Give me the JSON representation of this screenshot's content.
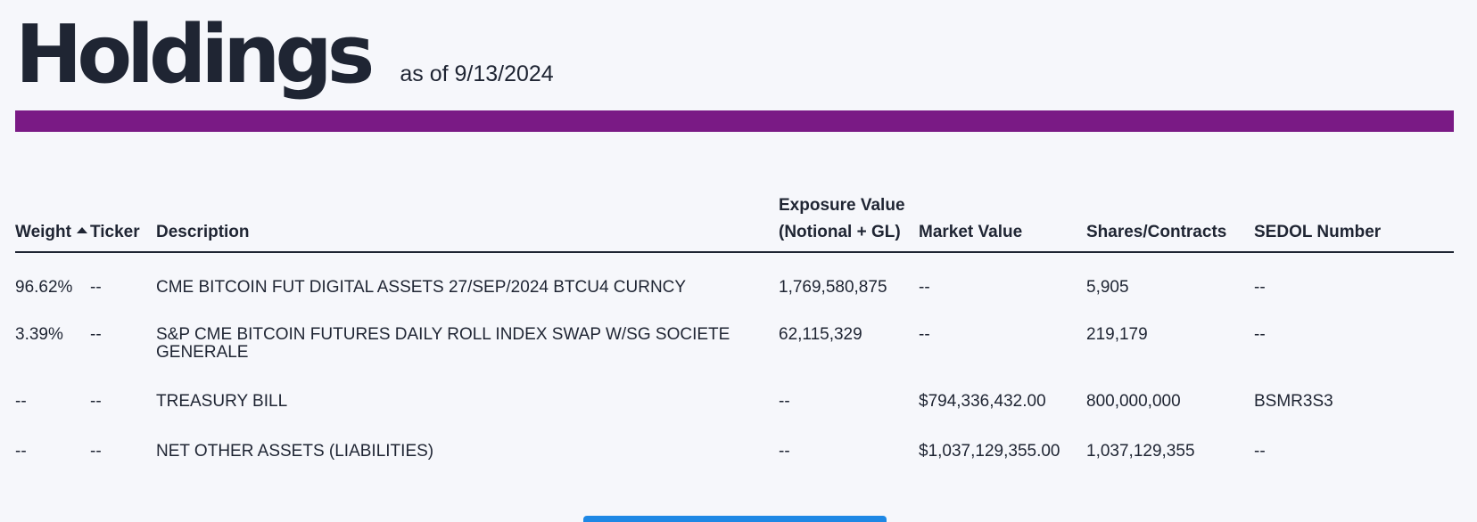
{
  "header": {
    "title": "Holdings",
    "as_of": "as of 9/13/2024",
    "accent_color": "#7a1a85"
  },
  "table": {
    "columns": {
      "weight": "Weight",
      "ticker": "Ticker",
      "description": "Description",
      "exposure_line1": "Exposure Value",
      "exposure_line2": "(Notional + GL)",
      "market_value": "Market Value",
      "shares": "Shares/Contracts",
      "sedol": "SEDOL Number"
    },
    "sort": {
      "column": "Weight",
      "direction": "ascending-icon"
    },
    "rows": [
      {
        "weight": "96.62%",
        "ticker": "--",
        "description": "CME BITCOIN FUT DIGITAL ASSETS 27/SEP/2024 BTCU4 CURNCY",
        "exposure": "1,769,580,875",
        "market_value": "--",
        "shares": "5,905",
        "sedol": "--"
      },
      {
        "weight": "3.39%",
        "ticker": "--",
        "description": "S&P CME BITCOIN FUTURES DAILY ROLL INDEX SWAP W/SG SOCIETE GENERALE",
        "exposure": "62,115,329",
        "market_value": "--",
        "shares": "219,179",
        "sedol": "--"
      },
      {
        "weight": "--",
        "ticker": "--",
        "description": "TREASURY BILL",
        "exposure": "--",
        "market_value": "$794,336,432.00",
        "shares": "800,000,000",
        "sedol": "BSMR3S3"
      },
      {
        "weight": "--",
        "ticker": "--",
        "description": "NET OTHER ASSETS (LIABILITIES)",
        "exposure": "--",
        "market_value": "$1,037,129,355.00",
        "shares": "1,037,129,355",
        "sedol": "--"
      }
    ]
  },
  "button_color": "#1e88e5"
}
